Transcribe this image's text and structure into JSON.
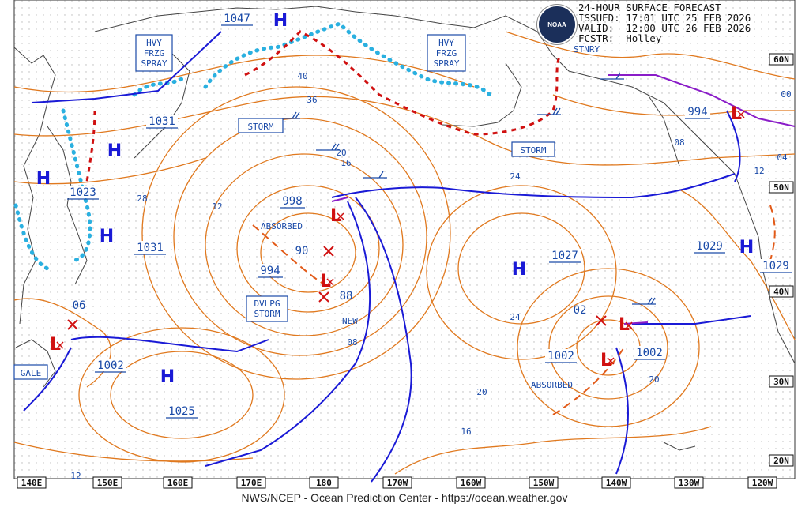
{
  "header": {
    "title": "24-HOUR SURFACE FORECAST",
    "issued": "ISSUED: 17:01 UTC 25 FEB 2026",
    "valid": "VALID:  12:00 UTC 26 FEB 2026",
    "forecaster": "FCSTR:  Holley",
    "logo_text": "NOAA"
  },
  "credit": "NWS/NCEP - Ocean Prediction Center - https://ocean.weather.gov",
  "lon_labels": [
    "140E",
    "150E",
    "160E",
    "170E",
    "180",
    "170W",
    "160W",
    "150W",
    "140W",
    "130W",
    "120W"
  ],
  "lat_labels": [
    "60N",
    "50N",
    "40N",
    "30N",
    "20N"
  ],
  "pressure_centers": [
    {
      "type": "H",
      "value": "1047"
    },
    {
      "type": "H",
      "value": "1031"
    },
    {
      "type": "H",
      "value": "1023"
    },
    {
      "type": "H",
      "value": "1031"
    },
    {
      "type": "H",
      "value": "1025"
    },
    {
      "type": "H",
      "value": "1027"
    },
    {
      "type": "H",
      "value": "1029"
    },
    {
      "type": "H",
      "value": "1029"
    },
    {
      "type": "L",
      "value": "998"
    },
    {
      "type": "L",
      "value": "994"
    },
    {
      "type": "L",
      "value": "1002"
    },
    {
      "type": "L",
      "value": "1002"
    },
    {
      "type": "L",
      "value": "1002"
    },
    {
      "type": "L",
      "value": "994"
    }
  ],
  "isobar_labels": [
    "40",
    "36",
    "28",
    "12",
    "20",
    "16",
    "90",
    "88",
    "08",
    "24",
    "20",
    "16",
    "02",
    "06",
    "12",
    "24",
    "20",
    "08",
    "04",
    "00",
    "12"
  ],
  "boxes": {
    "hvy1": [
      "HVY",
      "FRZG",
      "SPRAY"
    ],
    "hvy2": [
      "HVY",
      "FRZG",
      "SPRAY"
    ],
    "storm1": "STORM",
    "storm2": "STORM",
    "dvlpg": [
      "DVLPG",
      "STORM"
    ],
    "gale": "GALE"
  },
  "annotations": {
    "absorbed1": "ABSORBED",
    "absorbed2": "ABSORBED",
    "new": "NEW",
    "stnry": "STNRY"
  },
  "colors": {
    "isobar": "#e0791f",
    "cold_front": "#1a1ad6",
    "warm_front": "#e01010",
    "occluded": "#8a1cc8",
    "ice_edge": "#2ab0e0",
    "trough": "#e25a18",
    "high": "#1a1ad6",
    "low": "#d01010"
  }
}
